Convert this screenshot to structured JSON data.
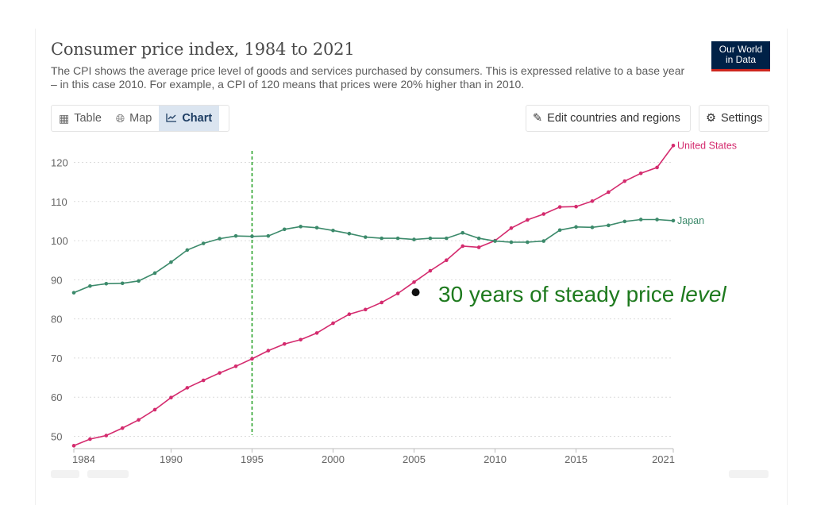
{
  "header": {
    "title": "Consumer price index, 1984 to 2021",
    "subtitle": "The CPI shows the average price level of goods and services purchased by consumers. This is expressed relative to a base year – in this case 2010. For example, a CPI of 120 means that prices were 20% higher than in 2010.",
    "logo_line1": "Our World",
    "logo_line2": "in Data"
  },
  "tabs": [
    {
      "label": "Table",
      "icon": "table-icon",
      "active": false
    },
    {
      "label": "Map",
      "icon": "globe-icon",
      "active": false
    },
    {
      "label": "Chart",
      "icon": "line-chart-icon",
      "active": true
    }
  ],
  "buttons": {
    "edit_label": "Edit countries and regions",
    "settings_label": "Settings"
  },
  "colors": {
    "us": "#d42b6e",
    "japan": "#3c8a6b",
    "annotation": "#1e7a1e",
    "grid": "#dcdcdc"
  },
  "chart_data": {
    "type": "line",
    "title": "Consumer price index, 1984 to 2021",
    "xlim": [
      1984,
      2021
    ],
    "ylim": [
      48,
      124
    ],
    "x_ticks": [
      1984,
      1990,
      1995,
      2000,
      2005,
      2010,
      2015,
      2021
    ],
    "y_ticks": [
      50,
      60,
      70,
      80,
      90,
      100,
      110,
      120
    ],
    "grid": "horizontal dotted",
    "x": [
      1984,
      1985,
      1986,
      1987,
      1988,
      1989,
      1990,
      1991,
      1992,
      1993,
      1994,
      1995,
      1996,
      1997,
      1998,
      1999,
      2000,
      2001,
      2002,
      2003,
      2004,
      2005,
      2006,
      2007,
      2008,
      2009,
      2010,
      2011,
      2012,
      2013,
      2014,
      2015,
      2016,
      2017,
      2018,
      2019,
      2020,
      2021
    ],
    "series": [
      {
        "name": "United States",
        "color": "#d42b6e",
        "values": [
          47.6,
          49.3,
          50.2,
          52.1,
          54.2,
          56.8,
          59.9,
          62.4,
          64.3,
          66.2,
          67.9,
          69.8,
          71.9,
          73.6,
          74.7,
          76.4,
          78.9,
          81.2,
          82.4,
          84.2,
          86.5,
          89.4,
          92.3,
          95.0,
          98.6,
          98.3,
          100.0,
          103.2,
          105.3,
          106.8,
          108.6,
          108.7,
          110.1,
          112.4,
          115.2,
          117.2,
          118.7,
          124.3
        ]
      },
      {
        "name": "Japan",
        "color": "#3c8a6b",
        "values": [
          86.7,
          88.4,
          89.0,
          89.1,
          89.7,
          91.7,
          94.5,
          97.6,
          99.3,
          100.5,
          101.2,
          101.1,
          101.2,
          102.9,
          103.6,
          103.3,
          102.6,
          101.8,
          100.9,
          100.6,
          100.6,
          100.3,
          100.6,
          100.6,
          102.0,
          100.6,
          99.9,
          99.6,
          99.6,
          99.9,
          102.7,
          103.5,
          103.4,
          103.9,
          104.9,
          105.4,
          105.4,
          105.1
        ]
      }
    ],
    "vertical_marker": {
      "x": 1995,
      "style": "dashed",
      "color": "#1e9e1e"
    },
    "annotation": {
      "x": 2005.1,
      "y": 86.8,
      "text_main": "30 years of steady price ",
      "text_italic": "level"
    }
  }
}
